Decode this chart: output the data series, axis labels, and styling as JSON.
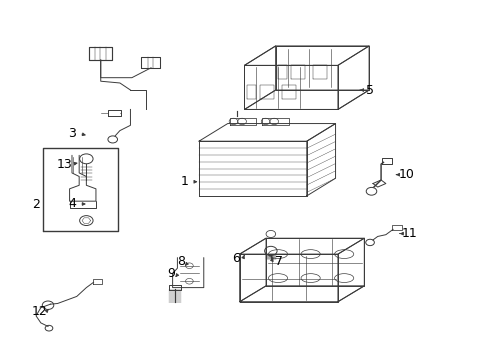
{
  "bg_color": "#ffffff",
  "line_color": "#3a3a3a",
  "label_color": "#000000",
  "font_size": 9,
  "figsize": [
    4.89,
    3.6
  ],
  "dpi": 100,
  "label_positions": {
    "1": [
      0.385,
      0.495,
      0.415,
      0.495
    ],
    "2": [
      0.072,
      0.435,
      0.095,
      0.435
    ],
    "3": [
      0.148,
      0.635,
      0.185,
      0.627
    ],
    "4": [
      0.148,
      0.435,
      0.185,
      0.435
    ],
    "5": [
      0.752,
      0.755,
      0.725,
      0.755
    ],
    "6": [
      0.488,
      0.275,
      0.503,
      0.285
    ],
    "7": [
      0.572,
      0.278,
      0.563,
      0.288
    ],
    "8": [
      0.372,
      0.268,
      0.375,
      0.248
    ],
    "9": [
      0.355,
      0.235,
      0.358,
      0.215
    ],
    "10": [
      0.835,
      0.515,
      0.808,
      0.515
    ],
    "11": [
      0.845,
      0.345,
      0.818,
      0.345
    ],
    "12": [
      0.077,
      0.13,
      0.1,
      0.13
    ],
    "13": [
      0.133,
      0.545,
      0.16,
      0.548
    ]
  }
}
